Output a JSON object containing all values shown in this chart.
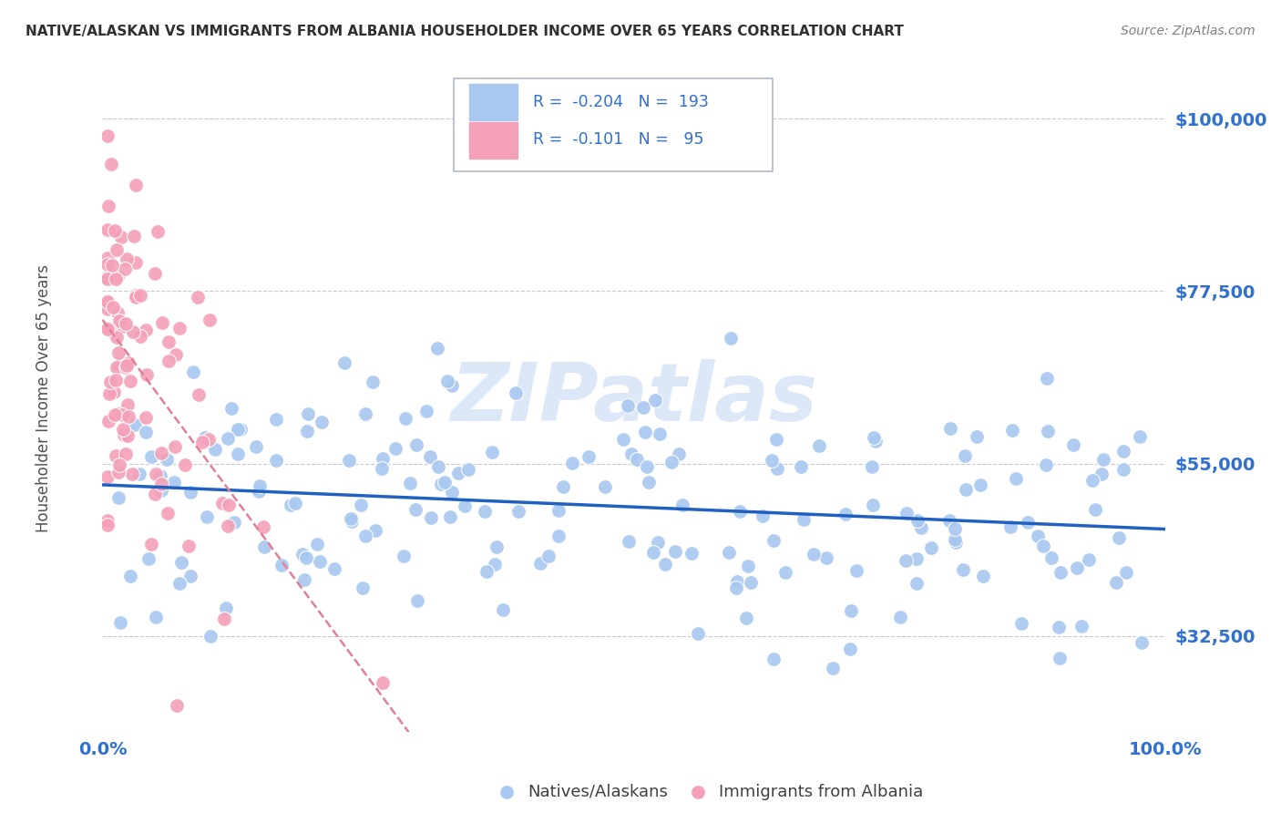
{
  "title": "NATIVE/ALASKAN VS IMMIGRANTS FROM ALBANIA HOUSEHOLDER INCOME OVER 65 YEARS CORRELATION CHART",
  "source": "Source: ZipAtlas.com",
  "ylabel": "Householder Income Over 65 years",
  "xmin": 0.0,
  "xmax": 1.0,
  "ymin": 20000,
  "ymax": 107000,
  "yticks": [
    32500,
    55000,
    77500,
    100000
  ],
  "ytick_labels": [
    "$32,500",
    "$55,000",
    "$77,500",
    "$100,000"
  ],
  "xtick_labels": [
    "0.0%",
    "100.0%"
  ],
  "blue_color": "#a8c8f0",
  "pink_color": "#f4a0b8",
  "blue_line_color": "#2060c0",
  "pink_line_color": "#e08098",
  "watermark": "ZIPatlas",
  "watermark_color": "#dce8f8",
  "title_color": "#303030",
  "source_color": "#808080",
  "axis_color": "#3070d0",
  "grid_color": "#c8c8d8",
  "blue_R": -0.204,
  "blue_N": 193,
  "pink_R": -0.101,
  "pink_N": 95,
  "blue_seed": 42,
  "pink_seed": 77
}
